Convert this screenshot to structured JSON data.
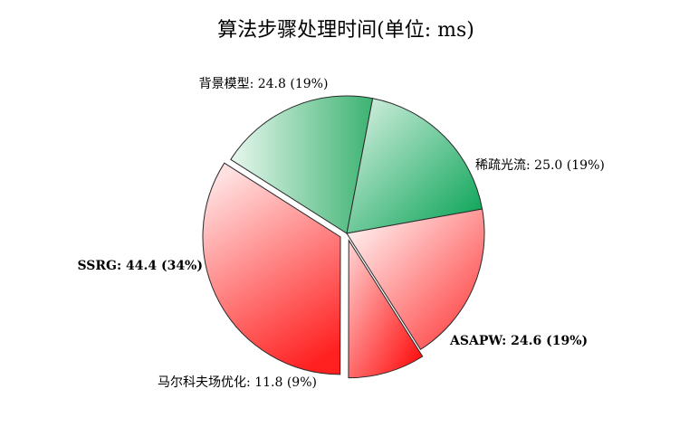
{
  "chart_data": {
    "type": "pie",
    "title": "算法步骤处理时间(单位: ms)",
    "slices": [
      {
        "label": "背景模型",
        "value": 24.8,
        "percent": "19%",
        "display": "背景模型: 24.8 (19%)",
        "bold": false,
        "color_start": "#e8f7ee",
        "color_end": "#3cb371"
      },
      {
        "label": "稀疏光流",
        "value": 25.0,
        "percent": "19%",
        "display": "稀疏光流: 25.0 (19%)",
        "bold": false,
        "color_start": "#ddf3e6",
        "color_end": "#00a050"
      },
      {
        "label": "ASAPW",
        "value": 24.6,
        "percent": "19%",
        "display": "ASAPW: 24.6 (19%)",
        "bold": true,
        "color_start": "#ffffff",
        "color_end": "#ff3030"
      },
      {
        "label": "马尔科夫场优化",
        "value": 11.8,
        "percent": "9%",
        "display": "马尔科夫场优化: 11.8 (9%)",
        "bold": false,
        "color_start": "#ffd6d6",
        "color_end": "#ff0000",
        "exploded": true
      },
      {
        "label": "SSRG",
        "value": 44.4,
        "percent": "34%",
        "display": "SSRG: 44.4 (34%)",
        "bold": true,
        "color_start": "#ffe0e0",
        "color_end": "#ff2020",
        "exploded": true
      }
    ]
  }
}
